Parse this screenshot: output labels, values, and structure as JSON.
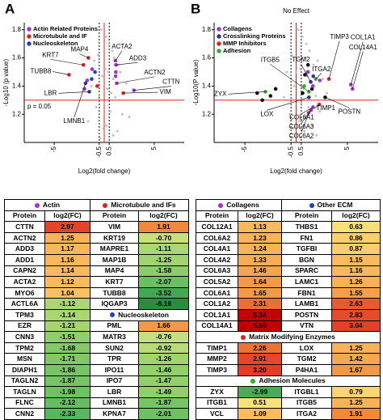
{
  "panels": [
    "A",
    "B"
  ],
  "chart_data": [
    {
      "type": "scatter",
      "x_label": "Log2(fold change)",
      "y_label": "-Log10 (p value)",
      "xlim": [
        -8,
        8
      ],
      "ylim": [
        1.0,
        1.85
      ],
      "xticks": [
        -5,
        -0.5,
        0.5,
        5
      ],
      "yticks": [
        1.2,
        1.4,
        1.6,
        1.8
      ],
      "fold_cutoffs": [
        -0.5,
        0.5
      ],
      "vline": {
        "value": 0
      },
      "threshold": {
        "value": 1.3,
        "label": "p = 0.05"
      },
      "legend": "upper left",
      "series": [
        {
          "color": "#bdbdbd",
          "x": [
            -0.3,
            0.2,
            0.5,
            0.8,
            -0.6,
            1.0,
            1.4,
            -1.0,
            0.1,
            0.4,
            -0.2,
            0.9,
            1.6,
            2.2,
            -1.3,
            0.3,
            0.7,
            -0.5,
            1.1,
            0.0,
            -0.8,
            0.6,
            1.8,
            2.5,
            -1.6,
            0.2,
            -0.1,
            1.3,
            0.9,
            -0.4
          ],
          "values": [
            1.8,
            1.75,
            1.7,
            1.65,
            1.62,
            1.6,
            1.55,
            1.58,
            1.52,
            1.5,
            1.47,
            1.45,
            1.5,
            1.42,
            1.4,
            1.38,
            1.35,
            1.33,
            1.32,
            1.28,
            1.25,
            1.22,
            1.2,
            1.18,
            1.15,
            1.12,
            1.1,
            1.08,
            1.05,
            1.03
          ]
        },
        {
          "name": "Actin Related Proteins",
          "color": "#a033c8",
          "x": [
            2.97,
            1.25,
            1.17,
            1.12,
            1.16,
            1.14,
            -1.71,
            -1.21,
            -1.98
          ],
          "values": [
            1.37,
            1.42,
            1.55,
            1.58,
            1.5,
            1.47,
            1.44,
            1.52,
            1.38
          ],
          "labels": [
            "CTTN",
            "ACTN2",
            "ADD3",
            "ACTA2",
            null,
            null,
            null,
            null,
            null
          ]
        },
        {
          "name": "Microtubule and IF",
          "color": "#e02020",
          "x": [
            1.91,
            -2.07,
            -1.58,
            -3.52,
            -0.7
          ],
          "values": [
            1.35,
            1.55,
            1.6,
            1.48,
            1.4
          ],
          "labels": [
            "VIM",
            "KRT7",
            "MAP4",
            "TUBB8",
            null
          ]
        },
        {
          "name": "Nucleoskeleton",
          "color": "#1f3fbf",
          "x": [
            -1.49,
            -1.87,
            -0.92,
            -1.26
          ],
          "values": [
            1.36,
            1.42,
            1.5,
            1.45
          ],
          "labels": [
            "LBR",
            "LMNB1",
            null,
            null
          ]
        }
      ]
    },
    {
      "type": "scatter",
      "x_label": "Log2(fold change)",
      "y_label": "-Log10(P value)",
      "xlim": [
        -8,
        8
      ],
      "ylim": [
        1.0,
        1.85
      ],
      "xticks": [
        -5,
        -0.5,
        0.5,
        5
      ],
      "yticks": [
        1.2,
        1.4,
        1.6,
        1.8
      ],
      "fold_cutoffs": [
        -0.5,
        0.5
      ],
      "vline": {
        "value": 0,
        "label": "No Effect"
      },
      "threshold": {
        "value": 1.3
      },
      "legend": "upper left",
      "series": [
        {
          "color": "#bdbdbd",
          "x": [
            0.2,
            0.6,
            1.0,
            1.3,
            -0.4,
            0.8,
            1.7,
            2.1,
            0.4,
            -0.9,
            1.1,
            2.6,
            0.0,
            1.5,
            -0.2,
            0.7,
            3.0,
            1.9,
            -1.2,
            0.5,
            1.2,
            2.3,
            -0.6,
            0.9,
            0.3,
            1.6,
            -0.3,
            0.8,
            2.0,
            1.4
          ],
          "values": [
            1.8,
            1.75,
            1.7,
            1.65,
            1.62,
            1.6,
            1.55,
            1.58,
            1.52,
            1.5,
            1.47,
            1.45,
            1.5,
            1.42,
            1.4,
            1.38,
            1.35,
            1.33,
            1.32,
            1.28,
            1.25,
            1.22,
            1.2,
            1.18,
            1.15,
            1.12,
            1.1,
            1.08,
            1.05,
            1.03
          ]
        },
        {
          "color": "#111111",
          "x": [
            2.83,
            -3.8,
            -3.3,
            -2.5,
            -2.0,
            0.63,
            0.86,
            1.15,
            1.16,
            1.55
          ],
          "values": [
            1.32,
            1.35,
            1.3,
            1.33,
            1.38,
            1.35,
            1.48,
            1.5,
            1.55,
            1.38
          ],
          "labels": [
            "POSTN",
            null,
            null,
            null,
            null,
            null,
            null,
            null,
            null,
            null
          ]
        },
        {
          "name": "Collagens",
          "color": "#a033c8",
          "x": [
            5.34,
            5.5,
            1.65,
            1.46,
            1.23,
            1.13,
            2.31,
            1.64
          ],
          "values": [
            1.41,
            1.38,
            1.25,
            1.23,
            1.21,
            1.5,
            1.44,
            1.4
          ],
          "labels": [
            "COL1A1",
            "COL14A1",
            "COL6A1",
            "COL6A3",
            "COL6A2",
            null,
            null,
            null
          ]
        },
        {
          "name": "Crosslinking Proteins",
          "color": "#3a2f9e",
          "x": [
            1.25,
            1.42,
            1.67
          ],
          "values": [
            1.32,
            1.43,
            1.47
          ],
          "labels": [
            "LOX",
            "TGM2",
            null
          ]
        },
        {
          "name": "MMP Inhibitors",
          "color": "#e02020",
          "x": [
            2.26,
            3.2
          ],
          "values": [
            1.27,
            1.45
          ],
          "labels": [
            "TIMP1",
            "TIMP3"
          ]
        },
        {
          "name": "Adhesion",
          "color": "#2cb02c",
          "x": [
            -2.99,
            1.25,
            1.91,
            0.79
          ],
          "values": [
            1.36,
            1.36,
            1.45,
            1.4
          ],
          "labels": [
            "ZYX",
            "ITGB5",
            "ITGA2",
            null
          ]
        }
      ]
    }
  ],
  "color_scale": [
    {
      "value": -6.2,
      "color": "#2a8c3c"
    },
    {
      "value": -2.5,
      "color": "#4cb35a"
    },
    {
      "value": -1.5,
      "color": "#8fcf6a"
    },
    {
      "value": -0.7,
      "color": "#c8e07c"
    },
    {
      "value": 0.6,
      "color": "#fbe27a"
    },
    {
      "value": 1.2,
      "color": "#f9b55a"
    },
    {
      "value": 1.9,
      "color": "#f08a3c"
    },
    {
      "value": 2.9,
      "color": "#e4472a"
    },
    {
      "value": 5.5,
      "color": "#c00000"
    }
  ],
  "tables": [
    {
      "rows": [
        [
          {
            "header": "Actin",
            "dot": "#a033c8"
          },
          {
            "header": "Microtubule and IFs",
            "dot": "#e02020"
          }
        ],
        [
          "Protein",
          "log2(FC)",
          "Protein",
          "log2(FC)"
        ],
        [
          "CTTN",
          2.97,
          "VIM",
          1.91
        ],
        [
          "ACTN2",
          1.25,
          "KRT19",
          {
            "value": -0.7,
            "label": "-0.70"
          }
        ],
        [
          "ADD3",
          1.17,
          "MAPRE1",
          -1.11
        ],
        [
          "ADD1",
          1.16,
          "MAP1B",
          -1.25
        ],
        [
          "CAPN2",
          1.14,
          "MAP4",
          -1.58
        ],
        [
          "ACTA2",
          1.12,
          "KRT7",
          -2.07
        ],
        [
          "MYO6",
          1.04,
          "TUBB8",
          -3.52
        ],
        [
          "ACTL6A",
          -1.12,
          "IQGAP3",
          -6.16
        ],
        [
          "TPM3",
          -1.14,
          {
            "header": "Nucleoskeleton",
            "dot": "#1f3fbf"
          }
        ],
        [
          "EZR",
          -1.21,
          "PML",
          1.66
        ],
        [
          "CNN3",
          -1.51,
          "MATR3",
          -0.76
        ],
        [
          "TPM2",
          -1.68,
          "SUN2",
          -0.92
        ],
        [
          "MSN",
          -1.71,
          "TPR",
          -1.26
        ],
        [
          "DIAPH1",
          -1.86,
          "IPO11",
          -1.46
        ],
        [
          "TAGLN2",
          -1.87,
          "IPO7",
          -1.47
        ],
        [
          "TAGLN",
          -1.98,
          "LBR",
          -1.49
        ],
        [
          "FLNC",
          -2.12,
          "LMNB1",
          -1.87
        ],
        [
          "CNN2",
          -2.33,
          "KPNA7",
          -2.01
        ]
      ]
    },
    {
      "rows": [
        [
          {
            "header": "Collagens",
            "dot": "#a033c8"
          },
          {
            "header": "Other ECM",
            "dot": "#1f3fbf"
          }
        ],
        [
          "Protein",
          "log2(FC)",
          "Protein",
          "log2(FC)"
        ],
        [
          "COL12A1",
          1.13,
          "THBS1",
          0.63
        ],
        [
          "COL6A2",
          1.23,
          "FN1",
          0.86
        ],
        [
          "COL4A1",
          1.24,
          "TGFBI",
          0.87
        ],
        [
          "COL4A2",
          1.33,
          "BGN",
          1.15
        ],
        [
          "COL6A3",
          1.46,
          "SPARC",
          1.16
        ],
        [
          "COL5A2",
          1.64,
          "LAMC1",
          1.26
        ],
        [
          "COL6A1",
          1.65,
          "FBN1",
          1.55
        ],
        [
          "COL1A2",
          2.31,
          "LAMB1",
          2.63
        ],
        [
          "COL1A1",
          5.34,
          "POSTN",
          2.83
        ],
        [
          "COL14A1",
          {
            "value": 5.5,
            "label": "5.50"
          },
          "VTN",
          3.04
        ],
        [
          {
            "header": "Matrix Modifying Enzymes",
            "dot": "#e02020"
          }
        ],
        [
          "TIMP1",
          2.26,
          "LOX",
          1.25
        ],
        [
          "MMP2",
          2.91,
          "TGM2",
          1.42
        ],
        [
          "TIMP3",
          {
            "value": 3.2,
            "label": "3.20"
          },
          "P4HA1",
          1.67
        ],
        [
          {
            "header": "Adhesion Molecules",
            "dot": "#2cb02c"
          }
        ],
        [
          "ZYX",
          -2.99,
          "ITGBL1",
          0.79
        ],
        [
          "ITGB1",
          0.51,
          "ITGB5",
          1.25
        ],
        [
          "VCL",
          1.09,
          "ITGA2",
          1.91
        ]
      ]
    }
  ]
}
